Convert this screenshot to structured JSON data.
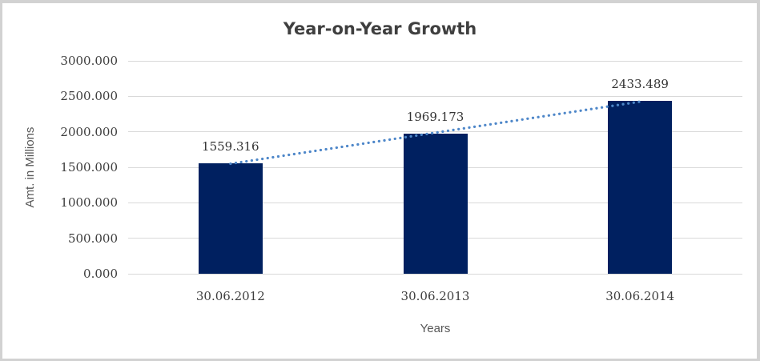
{
  "window": {
    "background": "#ffffff",
    "frame_border_color": "#d2d2d2"
  },
  "chart_data": {
    "type": "bar",
    "title": "Year-on-Year Growth",
    "xlabel": "Years",
    "ylabel": "Amt. in Millions",
    "categories": [
      "30.06.2012",
      "30.06.2013",
      "30.06.2014"
    ],
    "values": [
      1559.316,
      1969.173,
      2433.489
    ],
    "data_labels": [
      "1559.316",
      "1969.173",
      "2433.489"
    ],
    "ylim": [
      0,
      3000
    ],
    "ytick_step": 500,
    "ytick_labels": [
      "0.000",
      "500.000",
      "1000.000",
      "1500.000",
      "2000.000",
      "2500.000",
      "3000.000"
    ],
    "grid": true,
    "legend": "none",
    "bar_color": "#002060",
    "gridline_color": "#d9d9d9",
    "trendline": {
      "type": "linear",
      "style": "dotted",
      "color": "#4e87c9",
      "start_value": 1550.2,
      "end_value": 2424.4
    }
  }
}
